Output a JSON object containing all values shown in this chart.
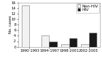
{
  "categories": [
    "1990-1993",
    "1994-1997",
    "1998-2001",
    "2002-2005"
  ],
  "non_hiv": [
    15,
    4,
    1,
    1
  ],
  "hiv": [
    0,
    2,
    3,
    5
  ],
  "ylim": [
    0,
    16
  ],
  "yticks": [
    0,
    2,
    4,
    6,
    8,
    10,
    12,
    14,
    16
  ],
  "ylabel": "No. cases",
  "bar_width": 0.38,
  "non_hiv_color": "#f2f2f2",
  "hiv_color": "#1a1a1a",
  "bar_edge_color": "#666666",
  "legend_labels": [
    "Non-HIV",
    "HIV"
  ],
  "background_color": "#ffffff",
  "tick_fontsize": 3.8,
  "ylabel_fontsize": 4.0,
  "legend_fontsize": 4.2
}
